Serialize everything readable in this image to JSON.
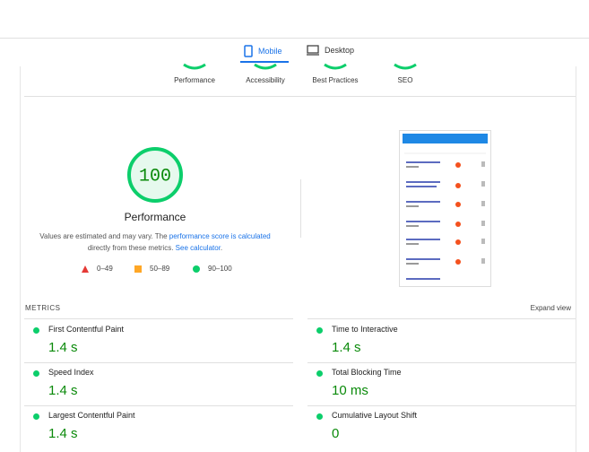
{
  "tabs": [
    {
      "label": "Mobile"
    },
    {
      "label": "Desktop"
    }
  ],
  "categories": [
    "Performance",
    "Accessibility",
    "Best Practices",
    "SEO"
  ],
  "score": {
    "value": "100",
    "label": "Performance"
  },
  "description": {
    "text1": "Values are estimated and may vary. The ",
    "link1": "performance score is calculated",
    "text2": " directly from these metrics. ",
    "link2": "See calculator",
    "text3": "."
  },
  "legend": [
    "0–49",
    "50–89",
    "90–100"
  ],
  "metrics": {
    "heading": "METRICS",
    "expand": "Expand view",
    "items": [
      {
        "label": "First Contentful Paint",
        "value": "1.4 s"
      },
      {
        "label": "Time to Interactive",
        "value": "1.4 s"
      },
      {
        "label": "Speed Index",
        "value": "1.4 s"
      },
      {
        "label": "Total Blocking Time",
        "value": "10 ms"
      },
      {
        "label": "Largest Contentful Paint",
        "value": "1.4 s"
      },
      {
        "label": "Cumulative Layout Shift",
        "value": "0"
      }
    ]
  }
}
